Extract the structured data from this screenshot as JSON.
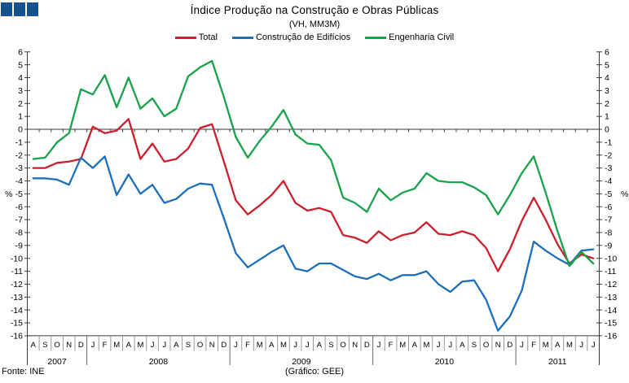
{
  "header": {
    "title": "Índice Produção na Construção e Obras Públicas",
    "subtitle": "(VH, MM3M)"
  },
  "logo_color": "#16528e",
  "legend": [
    {
      "label": "Total",
      "color": "#cc1f2d"
    },
    {
      "label": "Construção de Edifícios",
      "color": "#1c6fb8"
    },
    {
      "label": "Engenharia Civil",
      "color": "#18a24b"
    }
  ],
  "footer": {
    "source": "Fonte: INE",
    "credit": "(Gráfico: GEE)"
  },
  "axis": {
    "y_max": 6,
    "y_min": -16,
    "y_step": 1,
    "y_ticks": [
      6,
      5,
      4,
      3,
      2,
      1,
      0,
      -1,
      -2,
      -3,
      -4,
      -5,
      -6,
      -7,
      -8,
      -9,
      -10,
      -11,
      -12,
      -13,
      -14,
      -15,
      -16
    ],
    "unit_label": "%",
    "unit_at": -5,
    "axis_color": "#3a3a3a",
    "month_sep_color": "#999999",
    "year_sep_color": "#666666"
  },
  "chart_data": {
    "type": "line",
    "title": "Índice Produção na Construção e Obras Públicas (VH, MM3M)",
    "ylim": [
      -16,
      6
    ],
    "grid": false,
    "legend_position": "top",
    "x_groups": [
      {
        "year": "2007",
        "months": [
          "A",
          "S",
          "O",
          "N",
          "D"
        ]
      },
      {
        "year": "2008",
        "months": [
          "J",
          "F",
          "M",
          "A",
          "M",
          "J",
          "J",
          "A",
          "S",
          "O",
          "N",
          "D"
        ]
      },
      {
        "year": "2009",
        "months": [
          "J",
          "F",
          "M",
          "A",
          "M",
          "J",
          "J",
          "A",
          "S",
          "O",
          "N",
          "D"
        ]
      },
      {
        "year": "2010",
        "months": [
          "J",
          "F",
          "M",
          "A",
          "M",
          "J",
          "J",
          "A",
          "S",
          "O",
          "N",
          "D"
        ]
      },
      {
        "year": "2011",
        "months": [
          "J",
          "F",
          "M",
          "A",
          "M",
          "J",
          "J"
        ]
      }
    ],
    "series": [
      {
        "name": "Total",
        "color": "#cc1f2d",
        "values": [
          -3.0,
          -3.0,
          -2.6,
          -2.5,
          -2.3,
          0.2,
          -0.3,
          -0.1,
          0.8,
          -2.3,
          -1.1,
          -2.5,
          -2.3,
          -1.5,
          0.1,
          0.4,
          -2.5,
          -5.5,
          -6.6,
          -5.9,
          -5.1,
          -4.0,
          -5.7,
          -6.3,
          -6.1,
          -6.4,
          -8.2,
          -8.4,
          -8.8,
          -7.9,
          -8.6,
          -8.2,
          -8.0,
          -7.2,
          -8.1,
          -8.2,
          -7.9,
          -8.2,
          -9.2,
          -11.0,
          -9.3,
          -7.1,
          -5.3,
          -7.0,
          -8.9,
          -10.4,
          -9.7,
          -10.0
        ]
      },
      {
        "name": "Construção de Edifícios",
        "color": "#1c6fb8",
        "values": [
          -3.8,
          -3.8,
          -3.9,
          -4.3,
          -2.2,
          -3.0,
          -2.1,
          -5.1,
          -3.5,
          -5.0,
          -4.3,
          -5.7,
          -5.4,
          -4.6,
          -4.2,
          -4.3,
          -6.9,
          -9.6,
          -10.7,
          -10.1,
          -9.5,
          -9.0,
          -10.8,
          -11.0,
          -10.4,
          -10.4,
          -10.9,
          -11.4,
          -11.6,
          -11.2,
          -11.7,
          -11.3,
          -11.3,
          -11.0,
          -12.0,
          -12.6,
          -11.8,
          -11.7,
          -13.2,
          -15.6,
          -14.5,
          -12.5,
          -8.7,
          -9.4,
          -10.0,
          -10.5,
          -9.4,
          -9.3
        ]
      },
      {
        "name": "Engenharia Civil",
        "color": "#18a24b",
        "values": [
          -2.3,
          -2.2,
          -1.0,
          -0.3,
          3.1,
          2.7,
          4.2,
          1.7,
          4.0,
          1.6,
          2.4,
          1.0,
          1.6,
          4.1,
          4.8,
          5.3,
          2.5,
          -0.6,
          -2.2,
          -0.9,
          0.2,
          1.5,
          -0.4,
          -1.1,
          -1.2,
          -2.4,
          -5.3,
          -5.7,
          -6.4,
          -4.6,
          -5.5,
          -4.9,
          -4.6,
          -3.4,
          -4.0,
          -4.1,
          -4.1,
          -4.5,
          -5.1,
          -6.6,
          -5.1,
          -3.4,
          -2.1,
          -4.9,
          -7.9,
          -10.6,
          -9.5,
          -10.4
        ]
      }
    ]
  }
}
